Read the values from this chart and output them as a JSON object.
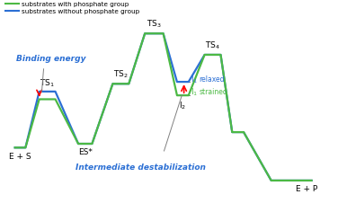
{
  "gc": "#4cb944",
  "bc": "#2b6fd4",
  "bg": "#ffffff",
  "legend_green": "substrates with phosphate group",
  "legend_blue": "substrates without phosphate group",
  "binding_energy": "Binding energy",
  "intermediate": "Intermediate destabilization",
  "gx": [
    0,
    0.5,
    1.1,
    1.8,
    2.8,
    3.4,
    4.3,
    5.0,
    5.7,
    6.5,
    7.1,
    7.6,
    8.3,
    9.0,
    9.5,
    10.0,
    11.2,
    12.0,
    12.5,
    13.0
  ],
  "gy": [
    0,
    0,
    2.5,
    2.5,
    0.2,
    0.2,
    3.3,
    3.3,
    5.9,
    5.9,
    2.7,
    2.7,
    4.8,
    4.8,
    0.8,
    0.8,
    -1.7,
    -1.7,
    -1.7,
    -1.7
  ],
  "bx": [
    0,
    0.5,
    1.1,
    1.8,
    2.8,
    3.4,
    4.3,
    5.0,
    5.7,
    6.5,
    7.1,
    7.6,
    8.3,
    9.0,
    9.5,
    10.0,
    11.2,
    12.0,
    12.5,
    13.0
  ],
  "by": [
    0,
    0,
    2.9,
    2.9,
    0.2,
    0.2,
    3.3,
    3.3,
    5.9,
    5.9,
    3.4,
    3.4,
    4.8,
    4.8,
    0.8,
    0.8,
    -1.7,
    -1.7,
    -1.7,
    -1.7
  ],
  "xlim": [
    -0.5,
    14.0
  ],
  "ylim": [
    -3.2,
    7.5
  ]
}
